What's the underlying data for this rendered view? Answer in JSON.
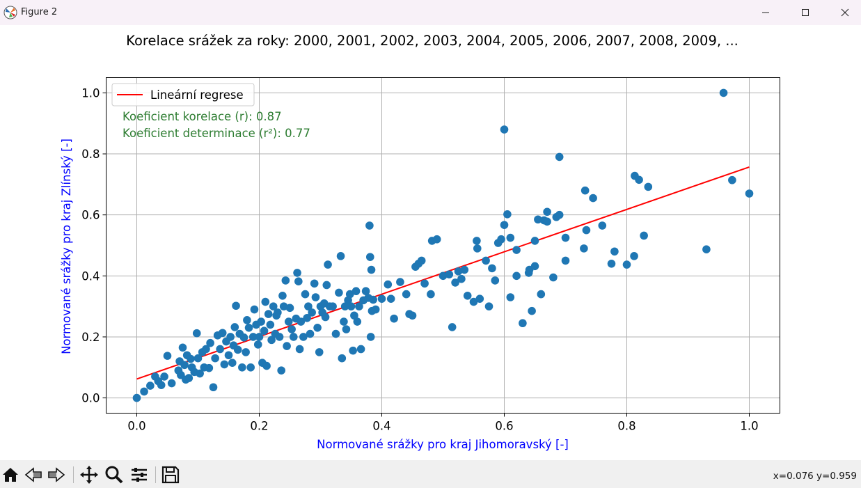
{
  "window": {
    "title": "Figure 2",
    "minimize_icon": "minimize-icon",
    "maximize_icon": "maximize-icon",
    "close_icon": "close-icon"
  },
  "toolbar": {
    "buttons": [
      "home-icon",
      "back-icon",
      "forward-icon",
      "pan-icon",
      "zoom-icon",
      "configure-subplots-icon",
      "save-icon"
    ],
    "coords": "x=0.076 y=0.959"
  },
  "chart_data": {
    "type": "scatter",
    "title": "Korelace srážek za roky: 2000, 2001, 2002, 2003, 2004, 2005, 2006, 2007, 2008, 2009, ...",
    "xlabel": "Normované srážky pro kraj Jihomoravský [-]",
    "ylabel": "Normované srážky pro kraj Zlínský [-]",
    "xlim": [
      -0.05,
      1.05
    ],
    "ylim": [
      -0.05,
      1.05
    ],
    "xticks": [
      "0.0",
      "0.2",
      "0.4",
      "0.6",
      "0.8",
      "1.0"
    ],
    "yticks": [
      "0.0",
      "0.2",
      "0.4",
      "0.6",
      "0.8",
      "1.0"
    ],
    "grid": true,
    "legend": {
      "position": "upper left",
      "entries": [
        "Lineární regrese"
      ]
    },
    "annotations": [
      "Koeficient korelace (r): 0.87",
      "Koeficient determinace (r²): 0.77"
    ],
    "colors": {
      "points": "#1f77b4",
      "regression": "#ff0000",
      "annotation": "#2e7d32",
      "labels": "#0000ff"
    },
    "regression": {
      "x": [
        0.0,
        1.0
      ],
      "y": [
        0.062,
        0.757
      ]
    },
    "points": [
      [
        0.0,
        0.0
      ],
      [
        0.012,
        0.021
      ],
      [
        0.022,
        0.04
      ],
      [
        0.03,
        0.07
      ],
      [
        0.035,
        0.055
      ],
      [
        0.04,
        0.042
      ],
      [
        0.045,
        0.07
      ],
      [
        0.05,
        0.138
      ],
      [
        0.057,
        0.048
      ],
      [
        0.068,
        0.09
      ],
      [
        0.07,
        0.12
      ],
      [
        0.072,
        0.075
      ],
      [
        0.075,
        0.165
      ],
      [
        0.078,
        0.108
      ],
      [
        0.08,
        0.06
      ],
      [
        0.082,
        0.14
      ],
      [
        0.085,
        0.065
      ],
      [
        0.088,
        0.128
      ],
      [
        0.09,
        0.1
      ],
      [
        0.094,
        0.085
      ],
      [
        0.098,
        0.212
      ],
      [
        0.1,
        0.13
      ],
      [
        0.103,
        0.08
      ],
      [
        0.107,
        0.15
      ],
      [
        0.11,
        0.1
      ],
      [
        0.113,
        0.16
      ],
      [
        0.118,
        0.098
      ],
      [
        0.12,
        0.18
      ],
      [
        0.125,
        0.035
      ],
      [
        0.128,
        0.13
      ],
      [
        0.132,
        0.205
      ],
      [
        0.136,
        0.16
      ],
      [
        0.14,
        0.213
      ],
      [
        0.143,
        0.11
      ],
      [
        0.146,
        0.185
      ],
      [
        0.15,
        0.14
      ],
      [
        0.153,
        0.2
      ],
      [
        0.156,
        0.115
      ],
      [
        0.158,
        0.172
      ],
      [
        0.16,
        0.232
      ],
      [
        0.162,
        0.302
      ],
      [
        0.165,
        0.158
      ],
      [
        0.168,
        0.21
      ],
      [
        0.172,
        0.1
      ],
      [
        0.175,
        0.198
      ],
      [
        0.178,
        0.15
      ],
      [
        0.18,
        0.255
      ],
      [
        0.183,
        0.23
      ],
      [
        0.186,
        0.1
      ],
      [
        0.19,
        0.2
      ],
      [
        0.192,
        0.29
      ],
      [
        0.195,
        0.24
      ],
      [
        0.198,
        0.175
      ],
      [
        0.2,
        0.2
      ],
      [
        0.203,
        0.25
      ],
      [
        0.205,
        0.115
      ],
      [
        0.208,
        0.22
      ],
      [
        0.21,
        0.315
      ],
      [
        0.212,
        0.105
      ],
      [
        0.215,
        0.275
      ],
      [
        0.218,
        0.24
      ],
      [
        0.22,
        0.19
      ],
      [
        0.223,
        0.3
      ],
      [
        0.226,
        0.21
      ],
      [
        0.228,
        0.27
      ],
      [
        0.23,
        0.28
      ],
      [
        0.233,
        0.2
      ],
      [
        0.236,
        0.09
      ],
      [
        0.238,
        0.335
      ],
      [
        0.24,
        0.3
      ],
      [
        0.243,
        0.385
      ],
      [
        0.245,
        0.17
      ],
      [
        0.248,
        0.25
      ],
      [
        0.25,
        0.295
      ],
      [
        0.253,
        0.225
      ],
      [
        0.256,
        0.2
      ],
      [
        0.26,
        0.26
      ],
      [
        0.262,
        0.41
      ],
      [
        0.264,
        0.382
      ],
      [
        0.266,
        0.16
      ],
      [
        0.268,
        0.25
      ],
      [
        0.272,
        0.2
      ],
      [
        0.275,
        0.34
      ],
      [
        0.278,
        0.262
      ],
      [
        0.28,
        0.3
      ],
      [
        0.283,
        0.21
      ],
      [
        0.286,
        0.28
      ],
      [
        0.29,
        0.375
      ],
      [
        0.292,
        0.33
      ],
      [
        0.295,
        0.23
      ],
      [
        0.298,
        0.15
      ],
      [
        0.3,
        0.3
      ],
      [
        0.303,
        0.28
      ],
      [
        0.306,
        0.31
      ],
      [
        0.308,
        0.265
      ],
      [
        0.31,
        0.37
      ],
      [
        0.312,
        0.437
      ],
      [
        0.315,
        0.3
      ],
      [
        0.32,
        0.3
      ],
      [
        0.325,
        0.21
      ],
      [
        0.33,
        0.345
      ],
      [
        0.333,
        0.465
      ],
      [
        0.335,
        0.13
      ],
      [
        0.338,
        0.25
      ],
      [
        0.34,
        0.3
      ],
      [
        0.342,
        0.225
      ],
      [
        0.345,
        0.32
      ],
      [
        0.348,
        0.34
      ],
      [
        0.35,
        0.3
      ],
      [
        0.353,
        0.155
      ],
      [
        0.355,
        0.27
      ],
      [
        0.358,
        0.35
      ],
      [
        0.36,
        0.25
      ],
      [
        0.363,
        0.3
      ],
      [
        0.366,
        0.16
      ],
      [
        0.37,
        0.32
      ],
      [
        0.374,
        0.35
      ],
      [
        0.378,
        0.328
      ],
      [
        0.38,
        0.565
      ],
      [
        0.381,
        0.462
      ],
      [
        0.382,
        0.2
      ],
      [
        0.383,
        0.42
      ],
      [
        0.384,
        0.285
      ],
      [
        0.386,
        0.322
      ],
      [
        0.39,
        0.29
      ],
      [
        0.4,
        0.325
      ],
      [
        0.41,
        0.372
      ],
      [
        0.415,
        0.325
      ],
      [
        0.42,
        0.26
      ],
      [
        0.43,
        0.38
      ],
      [
        0.44,
        0.34
      ],
      [
        0.445,
        0.275
      ],
      [
        0.45,
        0.27
      ],
      [
        0.455,
        0.43
      ],
      [
        0.46,
        0.44
      ],
      [
        0.465,
        0.45
      ],
      [
        0.47,
        0.375
      ],
      [
        0.48,
        0.34
      ],
      [
        0.482,
        0.515
      ],
      [
        0.49,
        0.52
      ],
      [
        0.5,
        0.4
      ],
      [
        0.51,
        0.405
      ],
      [
        0.515,
        0.232
      ],
      [
        0.52,
        0.378
      ],
      [
        0.525,
        0.415
      ],
      [
        0.53,
        0.39
      ],
      [
        0.535,
        0.42
      ],
      [
        0.54,
        0.335
      ],
      [
        0.55,
        0.315
      ],
      [
        0.555,
        0.515
      ],
      [
        0.556,
        0.49
      ],
      [
        0.56,
        0.325
      ],
      [
        0.57,
        0.45
      ],
      [
        0.575,
        0.3
      ],
      [
        0.58,
        0.425
      ],
      [
        0.585,
        0.385
      ],
      [
        0.59,
        0.508
      ],
      [
        0.595,
        0.52
      ],
      [
        0.6,
        0.567
      ],
      [
        0.61,
        0.33
      ],
      [
        0.62,
        0.485
      ],
      [
        0.63,
        0.245
      ],
      [
        0.65,
        0.515
      ],
      [
        0.66,
        0.34
      ],
      [
        0.67,
        0.61
      ],
      [
        0.68,
        0.395
      ],
      [
        0.69,
        0.6
      ],
      [
        0.7,
        0.525
      ],
      [
        0.6,
        0.88
      ],
      [
        0.605,
        0.602
      ],
      [
        0.61,
        0.525
      ],
      [
        0.62,
        0.4
      ],
      [
        0.64,
        0.41
      ],
      [
        0.641,
        0.42
      ],
      [
        0.645,
        0.285
      ],
      [
        0.65,
        0.432
      ],
      [
        0.655,
        0.585
      ],
      [
        0.665,
        0.582
      ],
      [
        0.67,
        0.578
      ],
      [
        0.685,
        0.593
      ],
      [
        0.69,
        0.79
      ],
      [
        0.7,
        0.45
      ],
      [
        0.73,
        0.49
      ],
      [
        0.732,
        0.68
      ],
      [
        0.734,
        0.55
      ],
      [
        0.745,
        0.655
      ],
      [
        0.76,
        0.565
      ],
      [
        0.775,
        0.44
      ],
      [
        0.78,
        0.48
      ],
      [
        0.8,
        0.437
      ],
      [
        0.812,
        0.465
      ],
      [
        0.813,
        0.728
      ],
      [
        0.82,
        0.715
      ],
      [
        0.828,
        0.532
      ],
      [
        0.835,
        0.692
      ],
      [
        0.93,
        0.487
      ],
      [
        0.958,
        1.0
      ],
      [
        0.972,
        0.714
      ],
      [
        1.0,
        0.67
      ]
    ]
  }
}
